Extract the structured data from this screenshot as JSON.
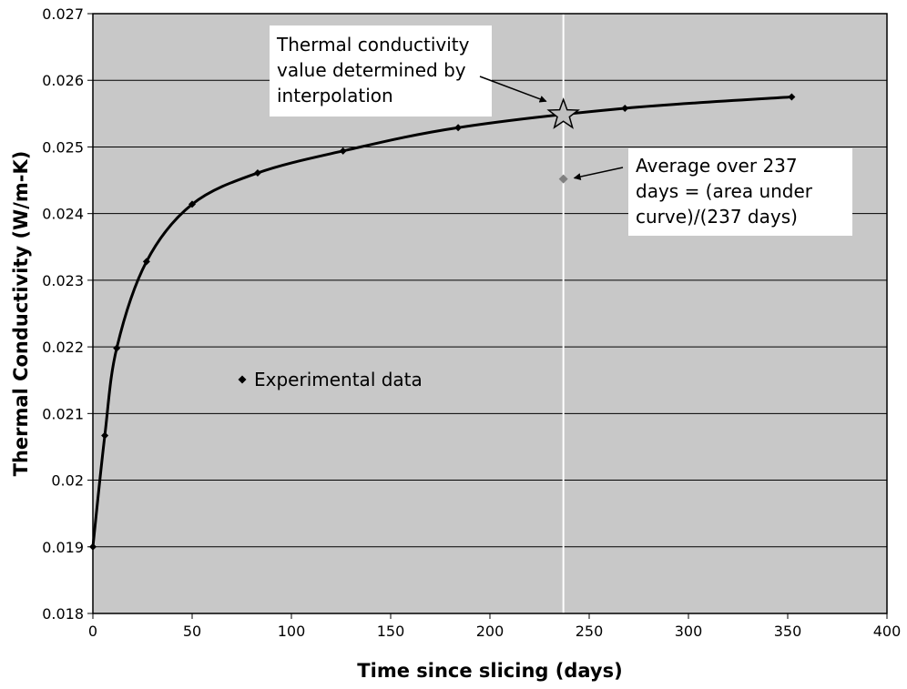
{
  "chart_data": {
    "type": "line",
    "xlabel": "Time since slicing (days)",
    "ylabel": "Thermal Conductivity (W/m-K)",
    "xlim": [
      0,
      400
    ],
    "ylim": [
      0.018,
      0.027
    ],
    "x_ticks": [
      0,
      50,
      100,
      150,
      200,
      250,
      300,
      350,
      400
    ],
    "x_tick_labels": [
      "0",
      "50",
      "100",
      "150",
      "200",
      "250",
      "300",
      "350",
      "400"
    ],
    "y_ticks": [
      0.018,
      0.019,
      0.02,
      0.021,
      0.022,
      0.023,
      0.024,
      0.025,
      0.026,
      0.027
    ],
    "y_tick_labels": [
      "0.018",
      "0.019",
      "0.02",
      "0.021",
      "0.022",
      "0.023",
      "0.024",
      "0.025",
      "0.026",
      "0.027"
    ],
    "grid": "horizontal",
    "plot_background": "#c8c8c8",
    "series": [
      {
        "name": "Experimental data",
        "color": "#000000",
        "marker": "diamond",
        "points": [
          {
            "x": 0,
            "y": 0.019
          },
          {
            "x": 6,
            "y": 0.02067
          },
          {
            "x": 12,
            "y": 0.02198
          },
          {
            "x": 27,
            "y": 0.02328
          },
          {
            "x": 50,
            "y": 0.02414
          },
          {
            "x": 83,
            "y": 0.02461
          },
          {
            "x": 126,
            "y": 0.02494
          },
          {
            "x": 184,
            "y": 0.02529
          },
          {
            "x": 268,
            "y": 0.02558
          },
          {
            "x": 352,
            "y": 0.02575
          }
        ]
      }
    ],
    "interpolated_point": {
      "x": 237,
      "y": 0.02548,
      "marker": "star",
      "color": "#c0c0c0"
    },
    "average_point": {
      "x": 237,
      "y": 0.02452,
      "marker": "diamond",
      "color": "#808080"
    },
    "reference_line": {
      "x": 237,
      "color": "#ffffff"
    },
    "legend": {
      "text": "Experimental data",
      "position": "center-left"
    },
    "annotations": [
      {
        "id": "interp",
        "lines": [
          "Thermal conductivity",
          "value determined by",
          "interpolation"
        ]
      },
      {
        "id": "avg",
        "lines": [
          "Average over 237",
          "days = (area under",
          "curve)/(237 days)"
        ]
      }
    ]
  }
}
